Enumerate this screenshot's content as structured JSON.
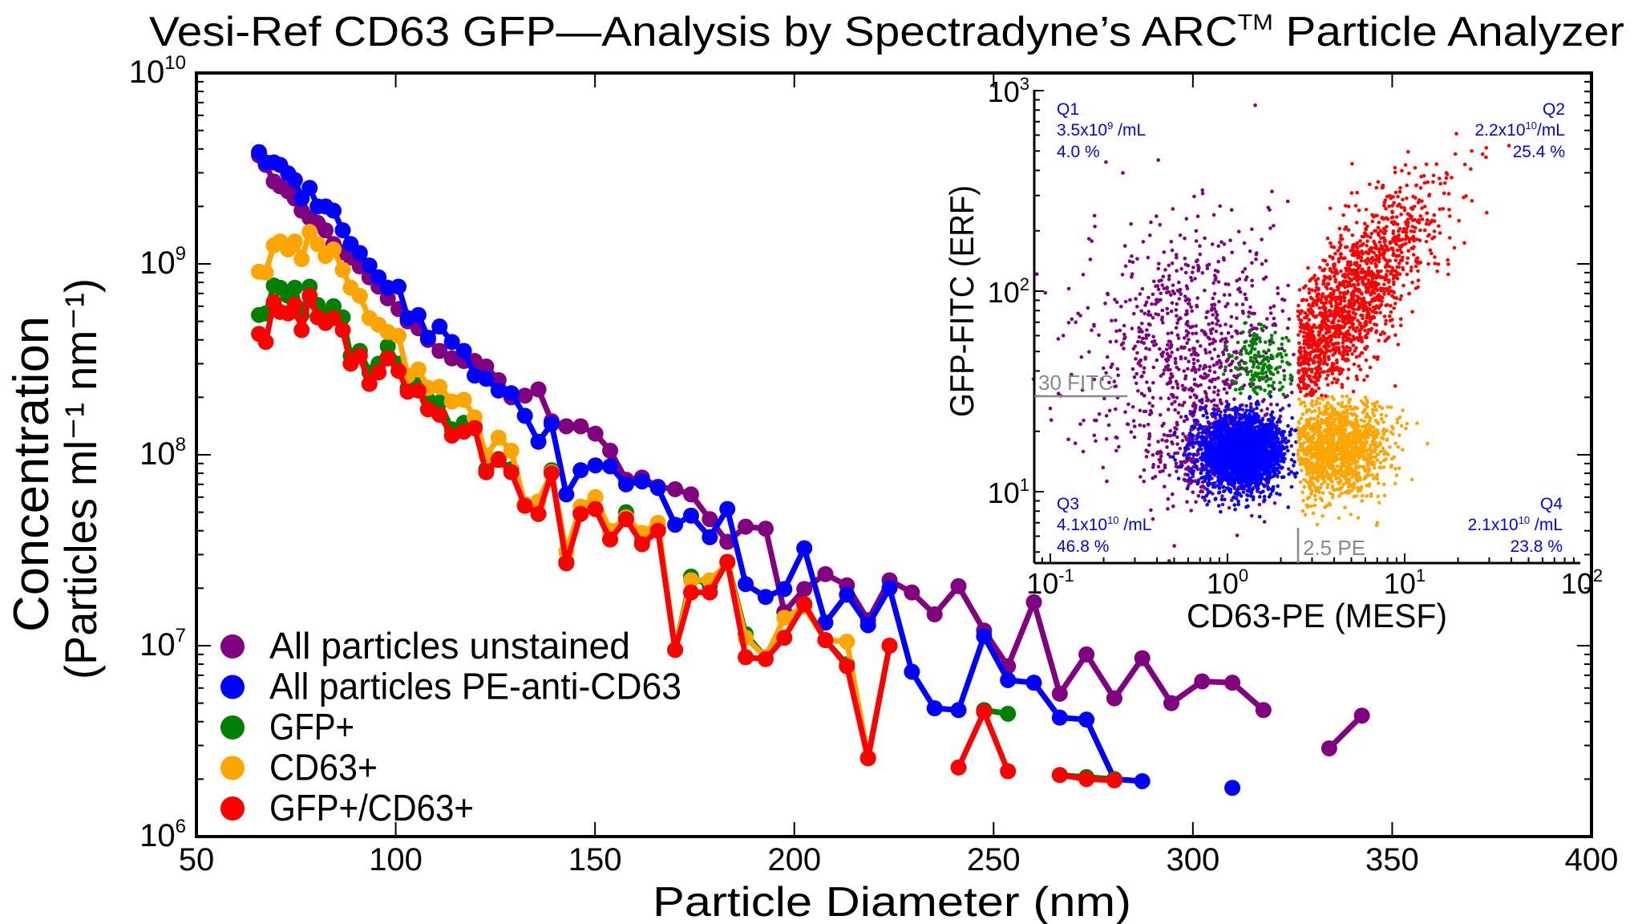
{
  "title": {
    "text": "Vesi-Ref CD63 GFP—Analysis by Spectradyne’s ARC",
    "superscript": "TM",
    "suffix": " Particle Analyzer"
  },
  "chart_data": [
    {
      "type": "line",
      "xlabel": "Particle Diameter (nm)",
      "ylabel": [
        "Concentration",
        "(Particles ml⁻¹ nm⁻¹)"
      ],
      "xlim": [
        50,
        400
      ],
      "ylim": [
        1000000,
        10000000000
      ],
      "yscale": "log",
      "xticks": [
        "50",
        "100",
        "150",
        "200",
        "250",
        "300",
        "350",
        "400"
      ],
      "yticks": [
        {
          "base": "10",
          "exp": "6"
        },
        {
          "base": "10",
          "exp": "7"
        },
        {
          "base": "10",
          "exp": "8"
        },
        {
          "base": "10",
          "exp": "9"
        },
        {
          "base": "10",
          "exp": "10"
        }
      ],
      "grid": false,
      "legend": "bottom-left",
      "x": [
        65.7,
        67.4,
        69.4,
        71.0,
        73.0,
        74.7,
        76.4,
        78.4,
        80.4,
        82.4,
        84.4,
        86.7,
        88.7,
        91.0,
        93.4,
        95.7,
        98.0,
        100.7,
        103.0,
        105.7,
        108.1,
        111.0,
        114.1,
        117.1,
        119.8,
        122.7,
        125.8,
        129.0,
        132.4,
        135.8,
        139.1,
        142.8,
        146.4,
        150.1,
        153.8,
        157.8,
        161.8,
        165.8,
        170.1,
        174.1,
        178.8,
        183.2,
        187.8,
        192.8,
        197.5,
        202.5,
        207.8,
        213.2,
        218.5,
        223.9,
        229.5,
        235.2,
        241.2,
        247.6,
        253.6,
        260.1,
        266.6,
        273.3,
        280.3,
        287.3,
        294.6,
        302.3,
        309.9,
        317.7,
        325.9,
        334.2,
        342.4
      ],
      "series": [
        {
          "name": "All particles unstained",
          "color": "#800080",
          "values": [
            3700000000.0,
            3300000000.0,
            2700000000.0,
            2550000000.0,
            2400000000.0,
            2200000000.0,
            1900000000.0,
            1740000000.0,
            1640000000.0,
            1500000000.0,
            1270000000.0,
            1150000000.0,
            1080000000.0,
            970000000.0,
            850000000.0,
            760000000.0,
            660000000.0,
            580000000.0,
            500000000.0,
            460000000.0,
            400000000.0,
            350000000.0,
            320000000.0,
            310000000.0,
            310000000.0,
            290000000.0,
            246000000.0,
            200000000.0,
            204000000.0,
            220000000.0,
            150000000.0,
            141000000.0,
            141000000.0,
            129000000.0,
            105000000.0,
            74000000.0,
            76000000.0,
            68000000.0,
            66000000.0,
            62000000.0,
            46000000.0,
            35000000.0,
            42000000.0,
            41000000.0,
            15000000.0,
            19800000.0,
            23700000.0,
            20700000.0,
            13600000.0,
            22000000.0,
            19000000.0,
            14600000.0,
            20500000.0,
            12000000.0,
            7800000.0,
            16900000.0,
            5600000.0,
            9000000.0,
            5300000.0,
            8600000.0,
            5000000.0,
            6500000.0,
            6400000.0,
            4600000.0,
            null,
            2900000.0,
            4300000.0
          ]
        },
        {
          "name": "All particles PE-anti-CD63",
          "color": "#0000ff",
          "values": [
            3850000000.0,
            3400000000.0,
            3400000000.0,
            3300000000.0,
            2980000000.0,
            2750000000.0,
            2200000000.0,
            2500000000.0,
            2000000000.0,
            2000000000.0,
            1900000000.0,
            1500000000.0,
            1270000000.0,
            1140000000.0,
            980000000.0,
            850000000.0,
            750000000.0,
            760000000.0,
            520000000.0,
            540000000.0,
            410000000.0,
            470000000.0,
            390000000.0,
            350000000.0,
            260000000.0,
            250000000.0,
            217000000.0,
            210000000.0,
            160000000.0,
            117000000.0,
            145000000.0,
            62000000.0,
            83000000.0,
            88000000.0,
            87000000.0,
            70000000.0,
            72500000.0,
            67000000.0,
            43000000.0,
            48000000.0,
            37000000.0,
            52000000.0,
            21000000.0,
            18000000.0,
            19800000.0,
            32400000.0,
            13200000.0,
            18500000.0,
            12800000.0,
            20000000.0,
            7300000.0,
            4700000.0,
            4600000.0,
            11200000.0,
            6600000.0,
            6400000.0,
            4200000.0,
            4100000.0,
            2000000.0,
            1950000.0,
            null,
            null,
            1800000.0,
            null,
            null,
            null,
            null
          ]
        },
        {
          "name": "GFP+",
          "color": "#008000",
          "values": [
            540000000.0,
            550000000.0,
            770000000.0,
            750000000.0,
            680000000.0,
            750000000.0,
            540000000.0,
            760000000.0,
            610000000.0,
            540000000.0,
            600000000.0,
            525000000.0,
            330000000.0,
            350000000.0,
            270000000.0,
            300000000.0,
            370000000.0,
            300000000.0,
            224000000.0,
            235000000.0,
            194000000.0,
            188000000.0,
            136000000.0,
            147000000.0,
            140000000.0,
            84000000.0,
            95000000.0,
            84000000.0,
            55000000.0,
            49000000.0,
            83000000.0,
            27500000.0,
            50000000.0,
            52000000.0,
            36000000.0,
            50000000.0,
            35000000.0,
            41000000.0,
            9500000.0,
            23000000.0,
            20500000.0,
            27500000.0,
            11500000.0,
            8700000.0,
            11000000.0,
            16500000.0,
            10700000.0,
            8000000.0,
            2600000.0,
            10000000.0,
            null,
            null,
            null,
            4600000.0,
            4400000.0,
            null,
            2100000.0,
            2050000.0,
            2000000.0,
            null,
            null,
            null,
            null,
            null,
            null,
            null,
            null
          ]
        },
        {
          "name": "CD63+",
          "color": "#ffa500",
          "values": [
            910000000.0,
            900000000.0,
            1250000000.0,
            1310000000.0,
            1190000000.0,
            1310000000.0,
            1060000000.0,
            1470000000.0,
            1270000000.0,
            1100000000.0,
            1190000000.0,
            930000000.0,
            750000000.0,
            680000000.0,
            520000000.0,
            480000000.0,
            440000000.0,
            420000000.0,
            260000000.0,
            280000000.0,
            224000000.0,
            227000000.0,
            190000000.0,
            194000000.0,
            157000000.0,
            99000000.0,
            123000000.0,
            105000000.0,
            55000000.0,
            57000000.0,
            81000000.0,
            31000000.0,
            53500000.0,
            60000000.0,
            40000000.0,
            47000000.0,
            39000000.0,
            44000000.0,
            9500000.0,
            22000000.0,
            22000000.0,
            27000000.0,
            11000000.0,
            8700000.0,
            14000000.0,
            16000000.0,
            10700000.0,
            10500000.0,
            2600000.0,
            null,
            null,
            null,
            null,
            null,
            null,
            null,
            null,
            null,
            null,
            null,
            null,
            null,
            null,
            null,
            null,
            null,
            null
          ]
        },
        {
          "name": "GFP+/CD63+",
          "color": "#ff0000",
          "values": [
            430000000.0,
            390000000.0,
            630000000.0,
            560000000.0,
            550000000.0,
            610000000.0,
            450000000.0,
            680000000.0,
            525000000.0,
            490000000.0,
            520000000.0,
            450000000.0,
            300000000.0,
            330000000.0,
            235000000.0,
            270000000.0,
            320000000.0,
            275000000.0,
            214000000.0,
            217000000.0,
            173000000.0,
            162000000.0,
            126000000.0,
            132000000.0,
            138000000.0,
            81000000.0,
            94000000.0,
            81000000.0,
            54000000.0,
            49000000.0,
            80000000.0,
            27000000.0,
            49000000.0,
            52000000.0,
            36000000.0,
            46000000.0,
            34000000.0,
            40000000.0,
            9500000.0,
            19000000.0,
            19000000.0,
            27500000.0,
            8700000.0,
            8500000.0,
            11000000.0,
            16500000.0,
            10700000.0,
            7800000.0,
            2570000.0,
            10000000.0,
            null,
            null,
            2300000.0,
            4500000.0,
            2200000.0,
            null,
            2100000.0,
            2000000.0,
            1970000.0,
            null,
            null,
            null,
            null,
            null,
            null,
            null,
            null
          ]
        }
      ]
    },
    {
      "type": "scatter",
      "xlabel": "CD63-PE (MESF)",
      "ylabel": "GFP-FITC (ERF)",
      "xscale": "log",
      "yscale": "log",
      "xlim": [
        0.08,
        98
      ],
      "ylim": [
        4.4,
        1000
      ],
      "xticks": [
        {
          "base": "10",
          "exp": "-1"
        },
        {
          "base": "10",
          "exp": "0"
        },
        {
          "base": "10",
          "exp": "1"
        },
        {
          "base": "10",
          "exp": "2"
        }
      ],
      "yticks": [
        {
          "base": "10",
          "exp": "1"
        },
        {
          "base": "10",
          "exp": "2"
        },
        {
          "base": "10",
          "exp": "3"
        }
      ],
      "gates": {
        "x": 2.5,
        "x_label": "2.5 PE",
        "y": 30,
        "y_label": "30 FITC",
        "color": "#888888"
      },
      "annotation_color": "#0000ff",
      "quadrants": [
        {
          "name": "Q1",
          "conc": "3.5x10",
          "conc_exp": "9",
          "unit": " /mL",
          "percent": "4.0 %",
          "color": "#800080"
        },
        {
          "name": "Q2",
          "conc": "2.2x10",
          "conc_exp": "10",
          "unit": "/mL",
          "percent": "25.4 %",
          "color": "#ff0000"
        },
        {
          "name": "Q3",
          "conc": "4.1x10",
          "conc_exp": "10",
          "unit": " /mL",
          "percent": "46.8 %",
          "color": "#0000ff"
        },
        {
          "name": "Q4",
          "conc": "2.1x10",
          "conc_exp": "10",
          "unit": " /mL",
          "percent": "23.8 %",
          "color": "#ffa500"
        }
      ],
      "gfp_only_color": "#008000"
    }
  ]
}
